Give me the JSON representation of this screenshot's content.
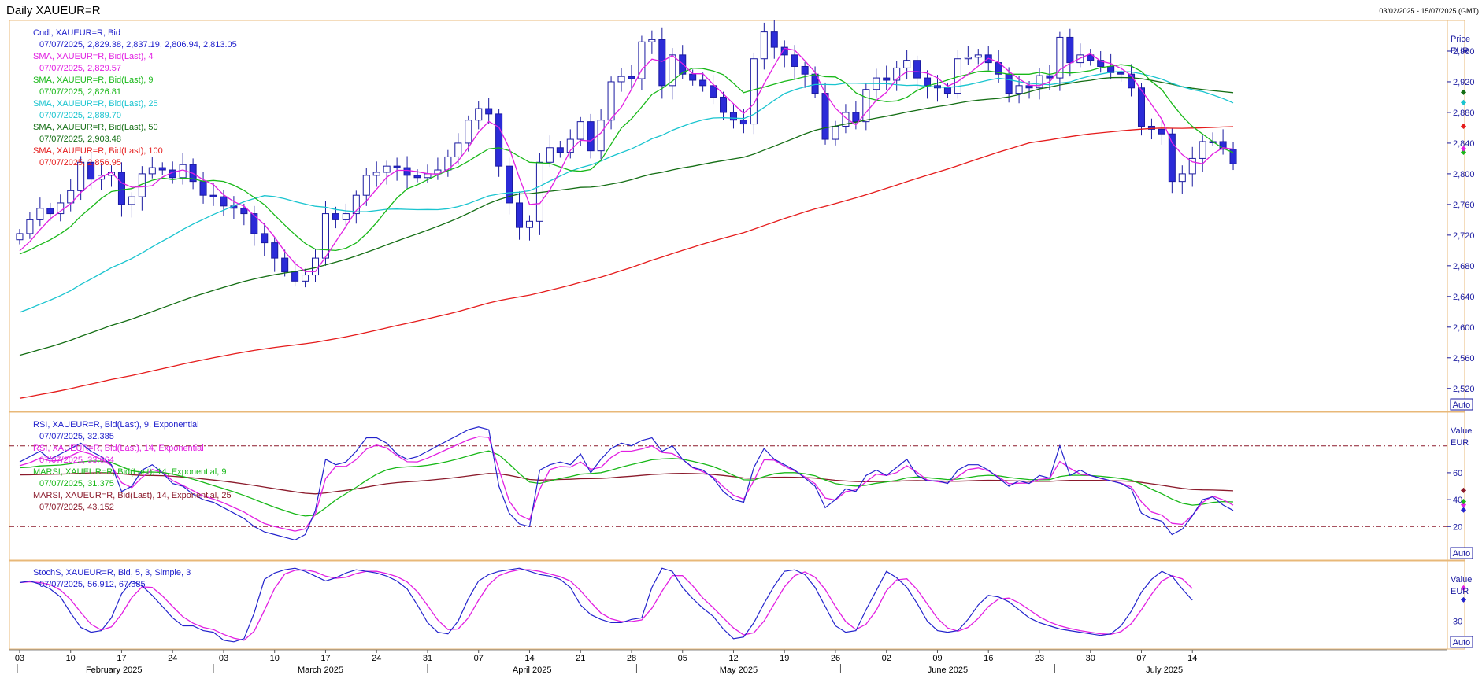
{
  "window": {
    "title": "Daily XAUEUR=R",
    "date_range": "03/02/2025 - 15/07/2025 (GMT)"
  },
  "price_panel": {
    "axis_title": "Price",
    "axis_unit": "EUR",
    "auto_label": "Auto",
    "legend": [
      {
        "name": "Cndl, XAUEUR=R, Bid",
        "value": "07/07/2025, 2,829.38, 2,837.19, 2,806.94, 2,813.05",
        "color": "#2222cc"
      },
      {
        "name": "SMA, XAUEUR=R, Bid(Last), 4",
        "value": "07/07/2025, 2,829.57",
        "color": "#e21fe2"
      },
      {
        "name": "SMA, XAUEUR=R, Bid(Last), 9",
        "value": "07/07/2025, 2,826.81",
        "color": "#18b818"
      },
      {
        "name": "SMA, XAUEUR=R, Bid(Last), 25",
        "value": "07/07/2025, 2,889.70",
        "color": "#19c4cf"
      },
      {
        "name": "SMA, XAUEUR=R, Bid(Last), 50",
        "value": "07/07/2025, 2,903.48",
        "color": "#146e14"
      },
      {
        "name": "SMA, XAUEUR=R, Bid(Last), 100",
        "value": "07/07/2025, 2,856.95",
        "color": "#e51b1b"
      }
    ]
  },
  "rsi_panel": {
    "axis_title": "Value",
    "axis_unit": "EUR",
    "auto_label": "Auto",
    "legend": [
      {
        "name": "RSI, XAUEUR=R, Bid(Last), 9, Exponential",
        "value": "07/07/2025, 32.385",
        "color": "#2222cc"
      },
      {
        "name": "RSI, XAUEUR=R, Bid(Last), 14, Exponential",
        "value": "07/07/2025, 33.664",
        "color": "#e21fe2"
      },
      {
        "name": "MARSI, XAUEUR=R, Bid(Last), 14, Exponential, 9",
        "value": "07/07/2025, 31.375",
        "color": "#18b818"
      },
      {
        "name": "MARSI, XAUEUR=R, Bid(Last), 14, Exponential, 25",
        "value": "07/07/2025, 43.152",
        "color": "#8b1a2b"
      }
    ]
  },
  "stoch_panel": {
    "axis_title": "Value",
    "axis_unit": "EUR",
    "auto_label": "Auto",
    "legend": [
      {
        "name": "StochS, XAUEUR=R, Bid, 5, 3, Simple, 3",
        "value": "07/07/2025, 56.912, 67.585",
        "color": "#2222cc"
      }
    ]
  },
  "chart_data": {
    "type": "candlestick",
    "x_axis": {
      "ticks": [
        "03",
        "10",
        "17",
        "24",
        "03",
        "10",
        "17",
        "24",
        "31",
        "07",
        "14",
        "21",
        "28",
        "05",
        "12",
        "19",
        "26",
        "02",
        "09",
        "16",
        "23",
        "30",
        "07",
        "14"
      ],
      "months": [
        "February 2025",
        "March 2025",
        "April 2025",
        "May 2025",
        "June 2025",
        "July 2025"
      ],
      "range": [
        "03/02/2025",
        "15/07/2025"
      ]
    },
    "price": {
      "ylim": [
        2490,
        3000
      ],
      "ticks": [
        "2,520",
        "2,560",
        "2,600",
        "2,640",
        "2,680",
        "2,720",
        "2,760",
        "2,800",
        "2,840",
        "2,880",
        "2,920",
        "2,960"
      ],
      "closes": [
        2722,
        2740,
        2755,
        2748,
        2762,
        2778,
        2815,
        2793,
        2798,
        2802,
        2760,
        2770,
        2800,
        2808,
        2805,
        2795,
        2812,
        2790,
        2772,
        2770,
        2758,
        2755,
        2748,
        2722,
        2710,
        2690,
        2672,
        2660,
        2668,
        2690,
        2748,
        2740,
        2748,
        2772,
        2798,
        2802,
        2810,
        2808,
        2798,
        2795,
        2800,
        2805,
        2822,
        2840,
        2870,
        2885,
        2878,
        2810,
        2762,
        2730,
        2738,
        2815,
        2834,
        2828,
        2845,
        2868,
        2830,
        2870,
        2920,
        2927,
        2924,
        2972,
        2975,
        2915,
        2955,
        2930,
        2922,
        2915,
        2900,
        2880,
        2870,
        2865,
        2950,
        2985,
        2965,
        2955,
        2940,
        2930,
        2905,
        2845,
        2862,
        2880,
        2868,
        2910,
        2925,
        2922,
        2938,
        2948,
        2925,
        2915,
        2912,
        2905,
        2950,
        2952,
        2955,
        2945,
        2930,
        2905,
        2915,
        2912,
        2928,
        2925,
        2978,
        2945,
        2955,
        2948,
        2940,
        2932,
        2930,
        2912,
        2862,
        2858,
        2852,
        2790,
        2800,
        2820,
        2842,
        2842,
        2832,
        2813
      ],
      "x_index_range": [
        -1,
        140
      ],
      "sma_colors": {
        "4": "#e21fe2",
        "9": "#18b818",
        "25": "#19c4cf",
        "50": "#146e14",
        "100": "#e51b1b"
      },
      "sma_seeds": {
        "25": 2615,
        "50": 2560,
        "100": 2505
      }
    },
    "rsi": {
      "ylim": [
        -5,
        105
      ],
      "ticks": [
        "20",
        "40",
        "60"
      ],
      "overbought": 80,
      "oversold": 20,
      "rsi9_approx": [
        68,
        72,
        76,
        70,
        74,
        78,
        82,
        76,
        72,
        66,
        46,
        50,
        62,
        66,
        60,
        52,
        50,
        44,
        40,
        38,
        34,
        30,
        26,
        20,
        16,
        14,
        12,
        10,
        14,
        32,
        70,
        66,
        68,
        76,
        86,
        86,
        82,
        74,
        70,
        72,
        76,
        80,
        84,
        88,
        92,
        94,
        92,
        50,
        30,
        22,
        20,
        62,
        66,
        68,
        66,
        74,
        60,
        70,
        78,
        82,
        80,
        84,
        86,
        76,
        80,
        70,
        64,
        62,
        56,
        46,
        40,
        38,
        64,
        78,
        70,
        66,
        62,
        56,
        50,
        34,
        40,
        48,
        46,
        58,
        62,
        58,
        64,
        70,
        58,
        54,
        54,
        52,
        62,
        66,
        66,
        62,
        56,
        50,
        54,
        52,
        58,
        56,
        80,
        58,
        62,
        58,
        56,
        54,
        52,
        48,
        30,
        26,
        24,
        14,
        18,
        28,
        40,
        42,
        36,
        32
      ]
    },
    "stochastic": {
      "ylim": [
        -5,
        105
      ],
      "ticks": [
        "30"
      ],
      "upper": 80,
      "lower": 20,
      "k_approx": [
        78,
        80,
        76,
        70,
        60,
        40,
        22,
        16,
        18,
        34,
        64,
        80,
        74,
        62,
        48,
        34,
        24,
        24,
        18,
        16,
        6,
        4,
        8,
        40,
        82,
        90,
        94,
        96,
        92,
        86,
        80,
        84,
        90,
        94,
        92,
        90,
        86,
        80,
        70,
        50,
        28,
        16,
        14,
        30,
        58,
        80,
        88,
        92,
        94,
        96,
        92,
        88,
        86,
        82,
        72,
        50,
        38,
        32,
        28,
        28,
        32,
        34,
        72,
        96,
        92,
        72,
        58,
        46,
        36,
        20,
        8,
        10,
        28,
        52,
        74,
        92,
        94,
        88,
        72,
        48,
        24,
        16,
        18,
        44,
        68,
        92,
        84,
        72,
        52,
        30,
        18,
        16,
        18,
        32,
        50,
        62,
        60,
        54,
        44,
        34,
        28,
        24,
        20,
        18,
        16,
        14,
        12,
        14,
        24,
        42,
        66,
        82,
        92,
        86,
        70,
        56
      ]
    }
  }
}
